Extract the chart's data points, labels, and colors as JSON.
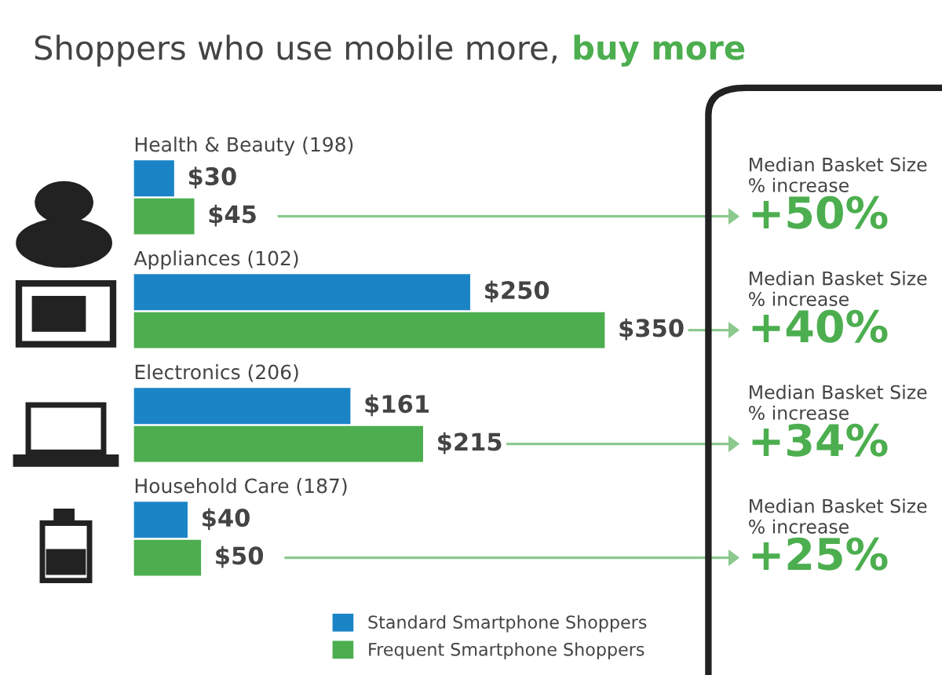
{
  "chart_data": {
    "type": "bar",
    "orientation": "horizontal",
    "title": "Shoppers who use mobile more, buy more",
    "categories": [
      "Health & Beauty (198)",
      "Appliances (102)",
      "Electronics (206)",
      "Household Care (187)"
    ],
    "series": [
      {
        "name": "Standard Smartphone Shoppers",
        "color": "#1b84c6",
        "values": [
          30,
          250,
          161,
          40
        ],
        "value_labels": [
          "$30",
          "$250",
          "$161",
          "$40"
        ]
      },
      {
        "name": "Frequent Smartphone Shoppers",
        "color": "#4cae4f",
        "values": [
          45,
          350,
          215,
          50
        ],
        "value_labels": [
          "$45",
          "$350",
          "$215",
          "$50"
        ]
      }
    ],
    "annotations": [
      "Median Basket Size\n% increase\n+50%",
      "Median Basket Size\n% increase\n+40%",
      "Median Basket Size\n% increase\n+34%",
      "Median Basket Size\n% increase\n+25%"
    ],
    "legend": "bottom"
  }
}
